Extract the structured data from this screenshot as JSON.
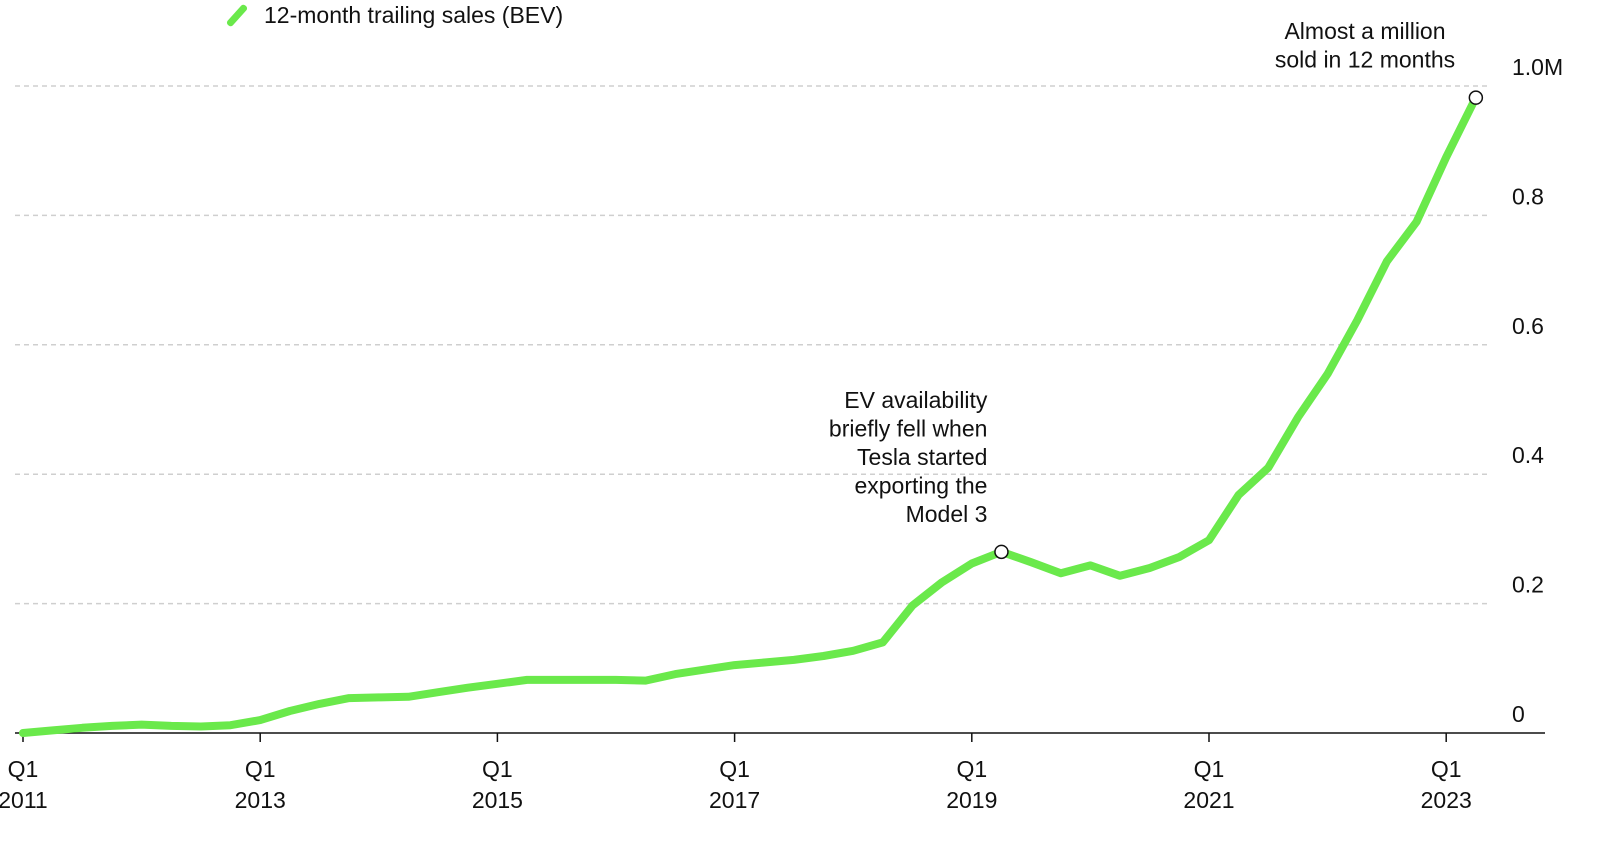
{
  "legend": {
    "label": "12-month trailing sales (BEV)"
  },
  "chart_data": {
    "type": "line",
    "series": [
      {
        "name": "12-month trailing sales (BEV)",
        "color": "#6ae94b",
        "x": [
          "Q1 2011",
          "Q2 2011",
          "Q3 2011",
          "Q4 2011",
          "Q1 2012",
          "Q2 2012",
          "Q3 2012",
          "Q4 2012",
          "Q1 2013",
          "Q2 2013",
          "Q3 2013",
          "Q4 2013",
          "Q1 2014",
          "Q2 2014",
          "Q3 2014",
          "Q4 2014",
          "Q1 2015",
          "Q2 2015",
          "Q3 2015",
          "Q4 2015",
          "Q1 2016",
          "Q2 2016",
          "Q3 2016",
          "Q4 2016",
          "Q1 2017",
          "Q2 2017",
          "Q3 2017",
          "Q4 2017",
          "Q1 2018",
          "Q2 2018",
          "Q3 2018",
          "Q4 2018",
          "Q1 2019",
          "Q2 2019",
          "Q3 2019",
          "Q4 2019",
          "Q1 2020",
          "Q2 2020",
          "Q3 2020",
          "Q4 2020",
          "Q1 2021",
          "Q2 2021",
          "Q3 2021",
          "Q4 2021",
          "Q1 2022",
          "Q2 2022",
          "Q3 2022",
          "Q4 2022",
          "Q1 2023",
          "Q2 2023"
        ],
        "values": [
          0.0,
          0.004,
          0.008,
          0.011,
          0.013,
          0.011,
          0.01,
          0.012,
          0.02,
          0.034,
          0.045,
          0.054,
          0.055,
          0.056,
          0.063,
          0.07,
          0.076,
          0.082,
          0.082,
          0.082,
          0.082,
          0.081,
          0.091,
          0.098,
          0.105,
          0.109,
          0.113,
          0.119,
          0.127,
          0.14,
          0.197,
          0.233,
          0.262,
          0.28,
          0.264,
          0.247,
          0.259,
          0.243,
          0.255,
          0.272,
          0.298,
          0.368,
          0.41,
          0.488,
          0.555,
          0.638,
          0.729,
          0.79,
          0.89,
          0.982
        ]
      }
    ],
    "x_ticks": [
      {
        "x": "Q1 2011",
        "q": "Q1",
        "year": "2011"
      },
      {
        "x": "Q1 2013",
        "q": "Q1",
        "year": "2013"
      },
      {
        "x": "Q1 2015",
        "q": "Q1",
        "year": "2015"
      },
      {
        "x": "Q1 2017",
        "q": "Q1",
        "year": "2017"
      },
      {
        "x": "Q1 2019",
        "q": "Q1",
        "year": "2019"
      },
      {
        "x": "Q1 2021",
        "q": "Q1",
        "year": "2021"
      },
      {
        "x": "Q1 2023",
        "q": "Q1",
        "year": "2023"
      }
    ],
    "y_ticks": [
      {
        "value": 0,
        "label": "0"
      },
      {
        "value": 0.2,
        "label": "0.2"
      },
      {
        "value": 0.4,
        "label": "0.4"
      },
      {
        "value": 0.6,
        "label": "0.6"
      },
      {
        "value": 0.8,
        "label": "0.8"
      },
      {
        "value": 1.0,
        "label": "1.0M"
      }
    ],
    "ylim": [
      0,
      1.0
    ],
    "y_axis_side": "right",
    "grid": "horizontal dashed",
    "legend_position": "top-left",
    "annotations": [
      {
        "x": "Q2 2019",
        "value": 0.28,
        "lines": [
          "EV availability",
          "briefly fell when",
          "Tesla started",
          "exporting the",
          "Model 3"
        ]
      },
      {
        "x": "Q2 2023",
        "value": 0.982,
        "lines": [
          "Almost a million",
          "sold in 12 months"
        ]
      }
    ],
    "colors": {
      "line": "#6ae94b",
      "grid": "#cfcfcf",
      "axis": "#111111"
    }
  }
}
